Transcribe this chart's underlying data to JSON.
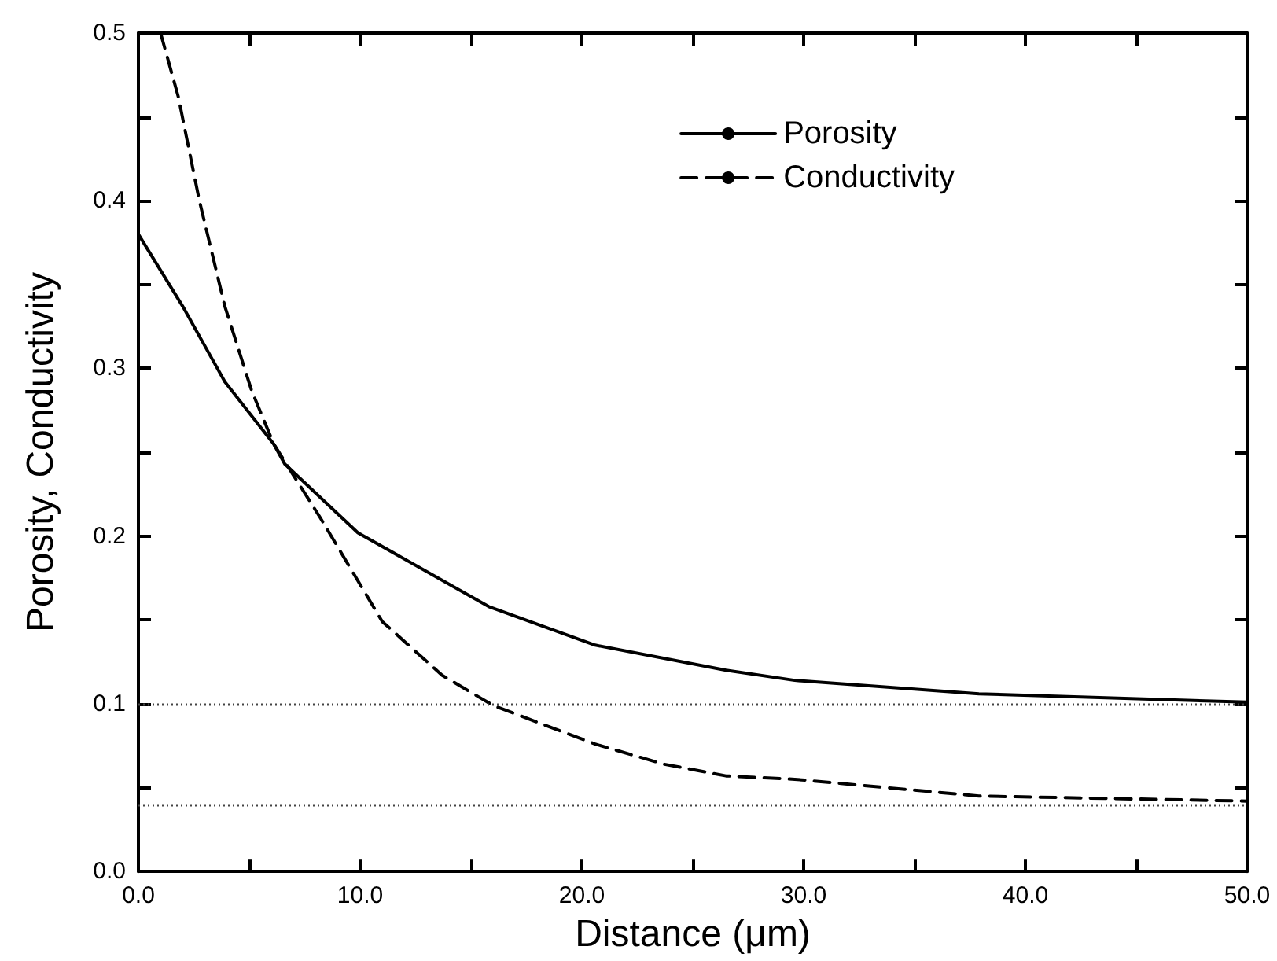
{
  "chart_data": {
    "type": "line",
    "xlabel": "Distance (μm)",
    "ylabel": "Porosity, Conductivity",
    "xlim": [
      0,
      50
    ],
    "ylim": [
      0,
      0.5
    ],
    "xticks": [
      {
        "value": 0,
        "label": "0.0"
      },
      {
        "value": 5,
        "label": null
      },
      {
        "value": 10,
        "label": "10.0"
      },
      {
        "value": 15,
        "label": null
      },
      {
        "value": 20,
        "label": "20.0"
      },
      {
        "value": 25,
        "label": null
      },
      {
        "value": 30,
        "label": "30.0"
      },
      {
        "value": 35,
        "label": null
      },
      {
        "value": 40,
        "label": "40.0"
      },
      {
        "value": 45,
        "label": null
      },
      {
        "value": 50,
        "label": "50.0"
      }
    ],
    "yticks": [
      {
        "value": 0,
        "label": "0.0"
      },
      {
        "value": 0.05,
        "label": null
      },
      {
        "value": 0.1,
        "label": "0.1"
      },
      {
        "value": 0.15,
        "label": null
      },
      {
        "value": 0.2,
        "label": "0.2"
      },
      {
        "value": 0.25,
        "label": null
      },
      {
        "value": 0.3,
        "label": "0.3"
      },
      {
        "value": 0.35,
        "label": null
      },
      {
        "value": 0.4,
        "label": "0.4"
      },
      {
        "value": 0.45,
        "label": null
      },
      {
        "value": 0.5,
        "label": "0.5"
      }
    ],
    "grid": false,
    "legend": "top right",
    "marker": "none",
    "series": [
      {
        "name": "Porosity",
        "color": "#000000",
        "line_style": "solid",
        "x": [
          0,
          2.0,
          3.9,
          6.1,
          6.6,
          9.9,
          15.8,
          20.6,
          26.5,
          29.6,
          37.9,
          50
        ],
        "values": [
          0.38,
          0.337,
          0.292,
          0.255,
          0.243,
          0.202,
          0.158,
          0.135,
          0.12,
          0.114,
          0.106,
          0.101
        ]
      },
      {
        "name": "Conductivity",
        "color": "#000000",
        "line_style": "dashed",
        "x": [
          1.0,
          1.8,
          2.75,
          3.9,
          5.1,
          6.1,
          8.2,
          11.0,
          13.7,
          16.0,
          20.6,
          23.7,
          26.5,
          29.6,
          37.9,
          50
        ],
        "values": [
          0.5,
          0.462,
          0.4,
          0.337,
          0.287,
          0.255,
          0.211,
          0.149,
          0.117,
          0.099,
          0.076,
          0.064,
          0.057,
          0.055,
          0.045,
          0.042
        ]
      }
    ],
    "ref_lines": [
      {
        "axis": "y",
        "value": 0.1,
        "color": "#444444",
        "line_style": "dotted"
      },
      {
        "axis": "y",
        "value": 0.04,
        "color": "#444444",
        "line_style": "dotted"
      }
    ]
  }
}
